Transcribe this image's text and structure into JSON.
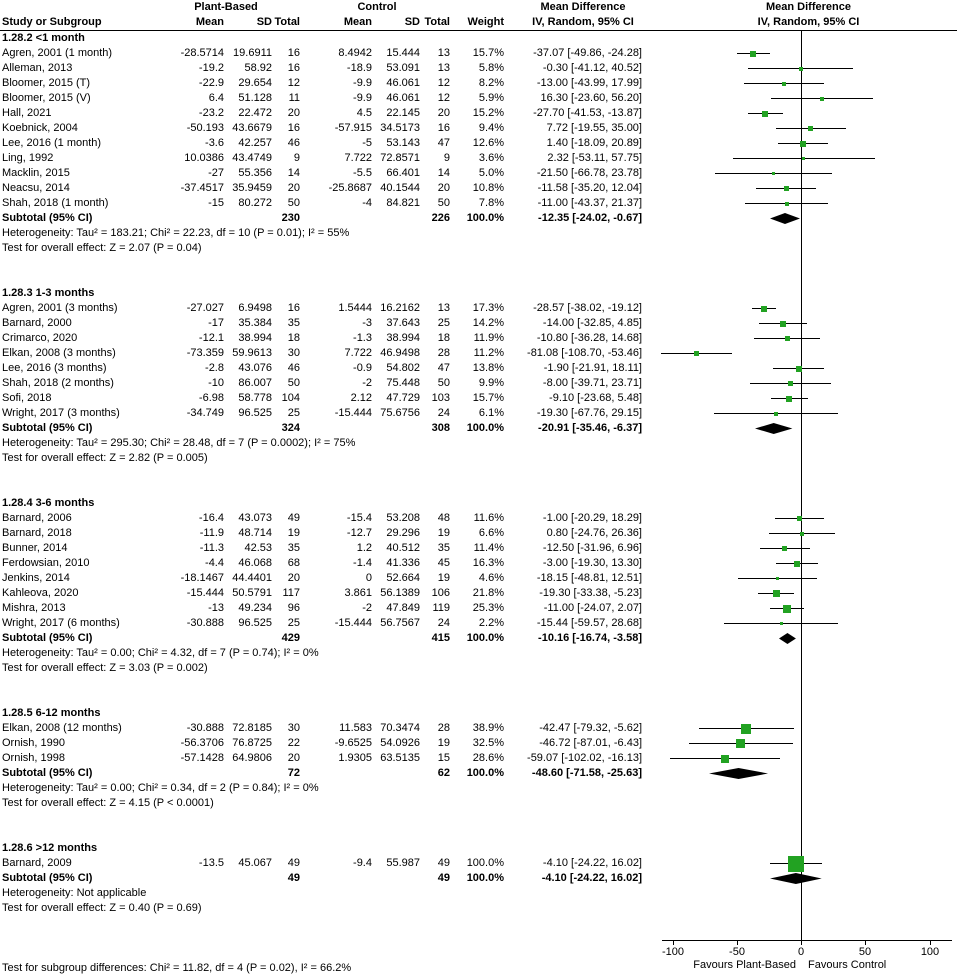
{
  "header": {
    "study": "Study or Subgroup",
    "group1": "Plant-Based",
    "group2": "Control",
    "mean": "Mean",
    "sd": "SD",
    "total": "Total",
    "weight": "Weight",
    "md": "Mean Difference",
    "method": "IV, Random, 95% CI"
  },
  "colors": {
    "marker_green": "#22A222",
    "diamond_black": "#000000",
    "line_black": "#000000"
  },
  "chart_data": {
    "type": "forest",
    "effect_measure": "Mean Difference, IV, Random, 95% CI",
    "axis": {
      "ticks": [
        -100,
        -50,
        0,
        50,
        100
      ],
      "min": -110,
      "max": 121,
      "favours_left": "Favours Plant-Based",
      "favours_right": "Favours Control"
    },
    "footer_test": "Test for subgroup differences: Chi² = 11.82, df = 4 (P = 0.02), I² = 66.2%",
    "subgroups": [
      {
        "label": "1.28.2 <1 month",
        "studies": [
          {
            "name": "Agren, 2001 (1 month)",
            "m1": "-28.5714",
            "sd1": "19.6911",
            "n1": "16",
            "m2": "8.4942",
            "sd2": "15.444",
            "n2": "13",
            "w": "15.7%",
            "ci": "-37.07 [-49.86, -24.28]"
          },
          {
            "name": "Alleman, 2013",
            "m1": "-19.2",
            "sd1": "58.92",
            "n1": "16",
            "m2": "-18.9",
            "sd2": "53.091",
            "n2": "13",
            "w": "5.8%",
            "ci": "-0.30 [-41.12, 40.52]"
          },
          {
            "name": "Bloomer, 2015 (T)",
            "m1": "-22.9",
            "sd1": "29.654",
            "n1": "12",
            "m2": "-9.9",
            "sd2": "46.061",
            "n2": "12",
            "w": "8.2%",
            "ci": "-13.00 [-43.99, 17.99]"
          },
          {
            "name": "Bloomer, 2015 (V)",
            "m1": "6.4",
            "sd1": "51.128",
            "n1": "11",
            "m2": "-9.9",
            "sd2": "46.061",
            "n2": "12",
            "w": "5.9%",
            "ci": "16.30 [-23.60, 56.20]"
          },
          {
            "name": "Hall, 2021",
            "m1": "-23.2",
            "sd1": "22.472",
            "n1": "20",
            "m2": "4.5",
            "sd2": "22.145",
            "n2": "20",
            "w": "15.2%",
            "ci": "-27.70 [-41.53, -13.87]"
          },
          {
            "name": "Koebnick, 2004",
            "m1": "-50.193",
            "sd1": "43.6679",
            "n1": "16",
            "m2": "-57.915",
            "sd2": "34.5173",
            "n2": "16",
            "w": "9.4%",
            "ci": "7.72 [-19.55, 35.00]"
          },
          {
            "name": "Lee, 2016 (1 month)",
            "m1": "-3.6",
            "sd1": "42.257",
            "n1": "46",
            "m2": "-5",
            "sd2": "53.143",
            "n2": "47",
            "w": "12.6%",
            "ci": "1.40 [-18.09, 20.89]"
          },
          {
            "name": "Ling, 1992",
            "m1": "10.0386",
            "sd1": "43.4749",
            "n1": "9",
            "m2": "7.722",
            "sd2": "72.8571",
            "n2": "9",
            "w": "3.6%",
            "ci": "2.32 [-53.11, 57.75]"
          },
          {
            "name": "Macklin, 2015",
            "m1": "-27",
            "sd1": "55.356",
            "n1": "14",
            "m2": "-5.5",
            "sd2": "66.401",
            "n2": "14",
            "w": "5.0%",
            "ci": "-21.50 [-66.78, 23.78]"
          },
          {
            "name": "Neacsu, 2014",
            "m1": "-37.4517",
            "sd1": "35.9459",
            "n1": "20",
            "m2": "-25.8687",
            "sd2": "40.1544",
            "n2": "20",
            "w": "10.8%",
            "ci": "-11.58 [-35.20, 12.04]"
          },
          {
            "name": "Shah, 2018 (1 month)",
            "m1": "-15",
            "sd1": "80.272",
            "n1": "50",
            "m2": "-4",
            "sd2": "84.821",
            "n2": "50",
            "w": "7.8%",
            "ci": "-11.00 [-43.37, 21.37]"
          }
        ],
        "subtotal": {
          "label": "Subtotal (95% CI)",
          "n1": "230",
          "n2": "226",
          "w": "100.0%",
          "ci": "-12.35 [-24.02, -0.67]"
        },
        "heterogeneity": "Heterogeneity: Tau² = 183.21; Chi² = 22.23, df = 10 (P = 0.01); I² = 55%",
        "test": "Test for overall effect: Z = 2.07 (P = 0.04)"
      },
      {
        "label": "1.28.3 1-3 months",
        "studies": [
          {
            "name": "Agren, 2001 (3 months)",
            "m1": "-27.027",
            "sd1": "6.9498",
            "n1": "16",
            "m2": "1.5444",
            "sd2": "16.2162",
            "n2": "13",
            "w": "17.3%",
            "ci": "-28.57 [-38.02, -19.12]"
          },
          {
            "name": "Barnard, 2000",
            "m1": "-17",
            "sd1": "35.384",
            "n1": "35",
            "m2": "-3",
            "sd2": "37.643",
            "n2": "25",
            "w": "14.2%",
            "ci": "-14.00 [-32.85, 4.85]"
          },
          {
            "name": "Crimarco, 2020",
            "m1": "-12.1",
            "sd1": "38.994",
            "n1": "18",
            "m2": "-1.3",
            "sd2": "38.994",
            "n2": "18",
            "w": "11.9%",
            "ci": "-10.80 [-36.28, 14.68]"
          },
          {
            "name": "Elkan, 2008 (3 months)",
            "m1": "-73.359",
            "sd1": "59.9613",
            "n1": "30",
            "m2": "7.722",
            "sd2": "46.9498",
            "n2": "28",
            "w": "11.2%",
            "ci": "-81.08 [-108.70, -53.46]"
          },
          {
            "name": "Lee, 2016 (3 months)",
            "m1": "-2.8",
            "sd1": "43.076",
            "n1": "46",
            "m2": "-0.9",
            "sd2": "54.802",
            "n2": "47",
            "w": "13.8%",
            "ci": "-1.90 [-21.91, 18.11]"
          },
          {
            "name": "Shah, 2018 (2 months)",
            "m1": "-10",
            "sd1": "86.007",
            "n1": "50",
            "m2": "-2",
            "sd2": "75.448",
            "n2": "50",
            "w": "9.9%",
            "ci": "-8.00 [-39.71, 23.71]"
          },
          {
            "name": "Sofi, 2018",
            "m1": "-6.98",
            "sd1": "58.778",
            "n1": "104",
            "m2": "2.12",
            "sd2": "47.729",
            "n2": "103",
            "w": "15.7%",
            "ci": "-9.10 [-23.68, 5.48]"
          },
          {
            "name": "Wright, 2017 (3 months)",
            "m1": "-34.749",
            "sd1": "96.525",
            "n1": "25",
            "m2": "-15.444",
            "sd2": "75.6756",
            "n2": "24",
            "w": "6.1%",
            "ci": "-19.30 [-67.76, 29.15]"
          }
        ],
        "subtotal": {
          "label": "Subtotal (95% CI)",
          "n1": "324",
          "n2": "308",
          "w": "100.0%",
          "ci": "-20.91 [-35.46, -6.37]"
        },
        "heterogeneity": "Heterogeneity: Tau² = 295.30; Chi² = 28.48, df = 7 (P = 0.0002); I² = 75%",
        "test": "Test for overall effect: Z = 2.82 (P = 0.005)"
      },
      {
        "label": "1.28.4 3-6 months",
        "studies": [
          {
            "name": "Barnard, 2006",
            "m1": "-16.4",
            "sd1": "43.073",
            "n1": "49",
            "m2": "-15.4",
            "sd2": "53.208",
            "n2": "48",
            "w": "11.6%",
            "ci": "-1.00 [-20.29, 18.29]"
          },
          {
            "name": "Barnard, 2018",
            "m1": "-11.9",
            "sd1": "48.714",
            "n1": "19",
            "m2": "-12.7",
            "sd2": "29.296",
            "n2": "19",
            "w": "6.6%",
            "ci": "0.80 [-24.76, 26.36]"
          },
          {
            "name": "Bunner, 2014",
            "m1": "-11.3",
            "sd1": "42.53",
            "n1": "35",
            "m2": "1.2",
            "sd2": "40.512",
            "n2": "35",
            "w": "11.4%",
            "ci": "-12.50 [-31.96, 6.96]"
          },
          {
            "name": "Ferdowsian, 2010",
            "m1": "-4.4",
            "sd1": "46.068",
            "n1": "68",
            "m2": "-1.4",
            "sd2": "41.336",
            "n2": "45",
            "w": "16.3%",
            "ci": "-3.00 [-19.30, 13.30]"
          },
          {
            "name": "Jenkins, 2014",
            "m1": "-18.1467",
            "sd1": "44.4401",
            "n1": "20",
            "m2": "0",
            "sd2": "52.664",
            "n2": "19",
            "w": "4.6%",
            "ci": "-18.15 [-48.81, 12.51]"
          },
          {
            "name": "Kahleova, 2020",
            "m1": "-15.444",
            "sd1": "50.5791",
            "n1": "117",
            "m2": "3.861",
            "sd2": "56.1389",
            "n2": "106",
            "w": "21.8%",
            "ci": "-19.30 [-33.38, -5.23]"
          },
          {
            "name": "Mishra, 2013",
            "m1": "-13",
            "sd1": "49.234",
            "n1": "96",
            "m2": "-2",
            "sd2": "47.849",
            "n2": "119",
            "w": "25.3%",
            "ci": "-11.00 [-24.07, 2.07]"
          },
          {
            "name": "Wright, 2017 (6 months)",
            "m1": "-30.888",
            "sd1": "96.525",
            "n1": "25",
            "m2": "-15.444",
            "sd2": "56.7567",
            "n2": "24",
            "w": "2.2%",
            "ci": "-15.44 [-59.57, 28.68]"
          }
        ],
        "subtotal": {
          "label": "Subtotal (95% CI)",
          "n1": "429",
          "n2": "415",
          "w": "100.0%",
          "ci": "-10.16 [-16.74, -3.58]"
        },
        "heterogeneity": "Heterogeneity: Tau² = 0.00; Chi² = 4.32, df = 7 (P = 0.74); I² = 0%",
        "test": "Test for overall effect: Z = 3.03 (P = 0.002)"
      },
      {
        "label": "1.28.5 6-12 months",
        "studies": [
          {
            "name": "Elkan, 2008 (12 months)",
            "m1": "-30.888",
            "sd1": "72.8185",
            "n1": "30",
            "m2": "11.583",
            "sd2": "70.3474",
            "n2": "28",
            "w": "38.9%",
            "ci": "-42.47 [-79.32, -5.62]"
          },
          {
            "name": "Ornish, 1990",
            "m1": "-56.3706",
            "sd1": "76.8725",
            "n1": "22",
            "m2": "-9.6525",
            "sd2": "54.0926",
            "n2": "19",
            "w": "32.5%",
            "ci": "-46.72 [-87.01, -6.43]"
          },
          {
            "name": "Ornish, 1998",
            "m1": "-57.1428",
            "sd1": "64.9806",
            "n1": "20",
            "m2": "1.9305",
            "sd2": "63.5135",
            "n2": "15",
            "w": "28.6%",
            "ci": "-59.07 [-102.02, -16.13]"
          }
        ],
        "subtotal": {
          "label": "Subtotal (95% CI)",
          "n1": "72",
          "n2": "62",
          "w": "100.0%",
          "ci": "-48.60 [-71.58, -25.63]"
        },
        "heterogeneity": "Heterogeneity: Tau² = 0.00; Chi² = 0.34, df = 2 (P = 0.84); I² = 0%",
        "test": "Test for overall effect: Z = 4.15 (P < 0.0001)"
      },
      {
        "label": "1.28.6 >12 months",
        "studies": [
          {
            "name": "Barnard, 2009",
            "m1": "-13.5",
            "sd1": "45.067",
            "n1": "49",
            "m2": "-9.4",
            "sd2": "55.987",
            "n2": "49",
            "w": "100.0%",
            "ci": "-4.10 [-24.22, 16.02]"
          }
        ],
        "subtotal": {
          "label": "Subtotal (95% CI)",
          "n1": "49",
          "n2": "49",
          "w": "100.0%",
          "ci": "-4.10 [-24.22, 16.02]"
        },
        "heterogeneity": "Heterogeneity: Not applicable",
        "test": "Test for overall effect: Z = 0.40 (P = 0.69)"
      }
    ]
  }
}
